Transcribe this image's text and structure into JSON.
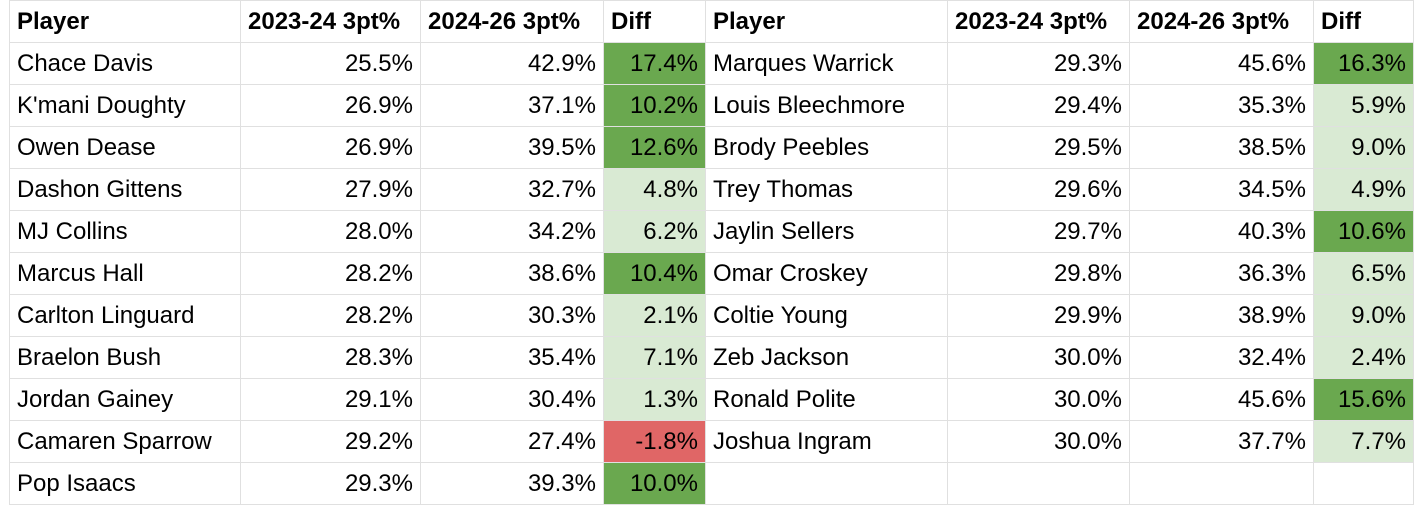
{
  "left": {
    "header": [
      "Player",
      "2023-24 3pt%",
      "2024-26 3pt%",
      "Diff"
    ],
    "rows": [
      [
        "Chace Davis",
        "25.5%",
        "42.9%",
        "17.4%"
      ],
      [
        "K'mani Doughty",
        "26.9%",
        "37.1%",
        "10.2%"
      ],
      [
        "Owen Dease",
        "26.9%",
        "39.5%",
        "12.6%"
      ],
      [
        "Dashon Gittens",
        "27.9%",
        "32.7%",
        "4.8%"
      ],
      [
        "MJ Collins",
        "28.0%",
        "34.2%",
        "6.2%"
      ],
      [
        "Marcus Hall",
        "28.2%",
        "38.6%",
        "10.4%"
      ],
      [
        "Carlton Linguard",
        "28.2%",
        "30.3%",
        "2.1%"
      ],
      [
        "Braelon Bush",
        "28.3%",
        "35.4%",
        "7.1%"
      ],
      [
        "Jordan Gainey",
        "29.1%",
        "30.4%",
        "1.3%"
      ],
      [
        "Camaren Sparrow",
        "29.2%",
        "27.4%",
        "-1.8%"
      ],
      [
        "Pop Isaacs",
        "29.3%",
        "39.3%",
        "10.0%"
      ]
    ]
  },
  "right": {
    "header": [
      "Player",
      "2023-24 3pt%",
      "2024-26 3pt%",
      "Diff"
    ],
    "rows": [
      [
        "Marques Warrick",
        "29.3%",
        "45.6%",
        "16.3%"
      ],
      [
        "Louis Bleechmore",
        "29.4%",
        "35.3%",
        "5.9%"
      ],
      [
        "Brody Peebles",
        "29.5%",
        "38.5%",
        "9.0%"
      ],
      [
        "Trey Thomas",
        "29.6%",
        "34.5%",
        "4.9%"
      ],
      [
        "Jaylin Sellers",
        "29.7%",
        "40.3%",
        "10.6%"
      ],
      [
        "Omar Croskey",
        "29.8%",
        "36.3%",
        "6.5%"
      ],
      [
        "Coltie Young",
        "29.9%",
        "38.9%",
        "9.0%"
      ],
      [
        "Zeb Jackson",
        "30.0%",
        "32.4%",
        "2.4%"
      ],
      [
        "Ronald Polite",
        "30.0%",
        "45.6%",
        "15.6%"
      ],
      [
        "Joshua Ingram",
        "30.0%",
        "37.7%",
        "7.7%"
      ]
    ]
  }
}
